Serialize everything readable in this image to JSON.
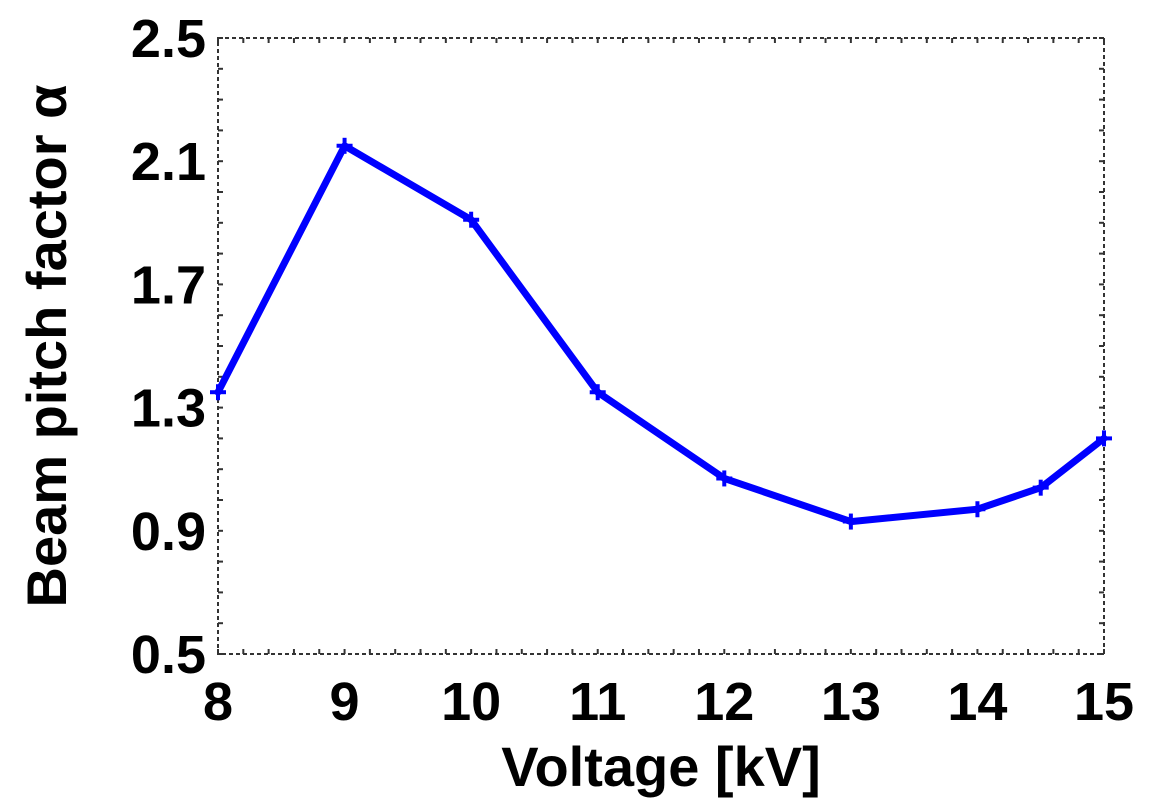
{
  "chart_data": {
    "type": "line",
    "title": "",
    "xlabel": "Voltage [kV]",
    "ylabel": "Beam pitch factor α",
    "xlim": [
      8,
      15
    ],
    "ylim": [
      0.5,
      2.5
    ],
    "x_ticks": [
      "8",
      "9",
      "10",
      "11",
      "12",
      "13",
      "14",
      "15"
    ],
    "y_ticks": [
      "0.5",
      "0.9",
      "1.3",
      "1.7",
      "2.1",
      "2.5"
    ],
    "grid": false,
    "legend": "none",
    "series": [
      {
        "color": "#0000ff",
        "marker": "plus",
        "x": [
          8,
          9,
          10,
          11,
          12,
          13,
          14,
          14.5,
          15
        ],
        "y": [
          1.35,
          2.15,
          1.91,
          1.35,
          1.07,
          0.93,
          0.97,
          1.04,
          1.2
        ]
      }
    ]
  }
}
